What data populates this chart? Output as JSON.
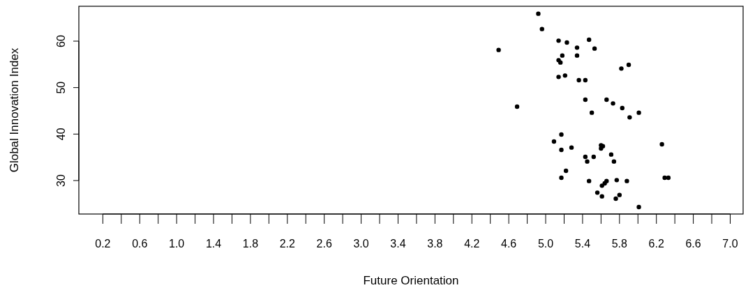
{
  "chart_data": {
    "type": "scatter",
    "xlabel": "Future Orientation",
    "ylabel": "Global Innovation Index",
    "marker": "circle",
    "grid": false,
    "xlim": [
      -0.06,
      7.14
    ],
    "ylim": [
      22.8,
      67.5
    ],
    "xticks": [
      0.2,
      {
        "value": 0.4,
        "label": null
      },
      0.6,
      {
        "value": 0.8,
        "label": null
      },
      "1.0",
      {
        "value": 1.2,
        "label": null
      },
      1.4,
      {
        "value": 1.6,
        "label": null
      },
      1.8,
      {
        "value": 2.0,
        "label": null
      },
      2.2,
      {
        "value": 2.4,
        "label": null
      },
      2.6,
      {
        "value": 2.8,
        "label": null
      },
      {
        "value": 3.0,
        "label": "3.0"
      },
      {
        "value": 3.2,
        "label": null
      },
      3.4,
      {
        "value": 3.6,
        "label": null
      },
      3.8,
      {
        "value": 4.0,
        "label": null
      },
      4.2,
      {
        "value": 4.4,
        "label": null
      },
      4.6,
      {
        "value": 4.8,
        "label": null
      },
      {
        "value": 5.0,
        "label": "5.0"
      },
      {
        "value": 5.2,
        "label": null
      },
      5.4,
      {
        "value": 5.6,
        "label": null
      },
      5.8,
      {
        "value": 6.0,
        "label": null
      },
      6.2,
      {
        "value": 6.4,
        "label": null
      },
      6.6,
      {
        "value": 6.8,
        "label": null
      },
      {
        "value": 7.0,
        "label": "7.0"
      }
    ],
    "yticks": [
      30,
      40,
      50,
      60
    ],
    "series": [
      {
        "color": "#000000",
        "x": [
          4.49,
          4.92,
          4.96,
          5.14,
          5.23,
          5.18,
          5.14,
          5.16,
          5.34,
          5.34,
          5.47,
          5.53,
          5.14,
          5.21,
          5.36,
          5.43,
          5.43,
          5.66,
          5.73,
          4.69,
          5.5,
          5.82,
          5.9,
          5.83,
          5.91,
          6.01,
          6.26,
          5.71,
          5.74,
          5.66,
          5.77,
          5.88,
          6.29,
          6.33,
          5.76,
          5.8,
          6.01,
          5.17,
          5.09,
          5.17,
          5.28,
          5.43,
          5.45,
          5.52,
          5.6,
          5.62,
          5.6,
          5.22,
          5.17,
          5.47,
          5.64,
          5.61,
          5.56,
          5.61
        ],
        "values": [
          58.1,
          65.9,
          62.6,
          60.1,
          59.7,
          56.9,
          55.9,
          55.4,
          58.6,
          56.9,
          60.3,
          58.4,
          52.3,
          52.6,
          51.6,
          51.6,
          47.4,
          47.4,
          46.6,
          45.9,
          44.6,
          54.1,
          54.9,
          45.6,
          43.6,
          44.6,
          37.8,
          35.6,
          34.1,
          29.9,
          30.1,
          29.9,
          30.6,
          30.6,
          26.1,
          26.9,
          24.3,
          39.9,
          38.4,
          36.6,
          37.1,
          35.1,
          34.1,
          35.1,
          37.6,
          37.4,
          36.9,
          32.1,
          30.6,
          29.9,
          29.4,
          28.9,
          27.4,
          26.6
        ]
      }
    ]
  }
}
